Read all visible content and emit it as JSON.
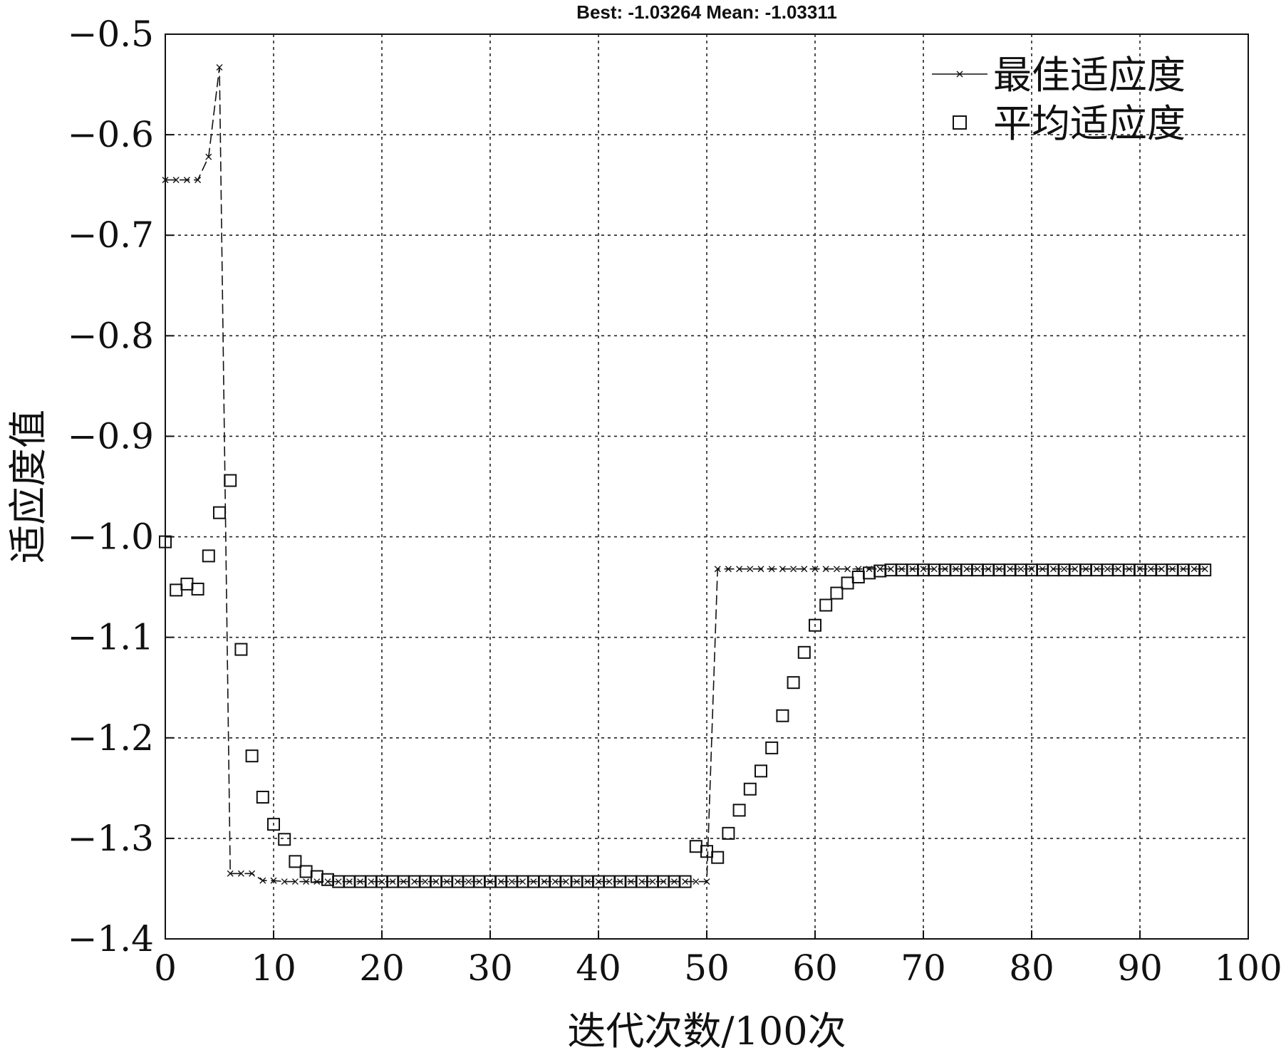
{
  "chart_data": {
    "type": "line",
    "title": "Best: -1.03264 Mean: -1.03311",
    "xlabel": "迭代次数/100次",
    "ylabel": "适应度值",
    "xlim": [
      0,
      100
    ],
    "ylim": [
      -1.4,
      -0.5
    ],
    "xticks": [
      "0",
      "10",
      "20",
      "30",
      "40",
      "50",
      "60",
      "70",
      "80",
      "90",
      "100"
    ],
    "yticks": [
      "−0.5",
      "−0.6",
      "−0.7",
      "−0.8",
      "−0.9",
      "−1.0",
      "−1.1",
      "−1.2",
      "−1.3",
      "−1.4"
    ],
    "grid": true,
    "legend_position": "top-right",
    "series": [
      {
        "name": "最佳适应度",
        "marker": "x",
        "line_style": "dashed",
        "x": [
          0,
          1,
          2,
          3,
          4,
          5,
          6,
          7,
          8,
          9,
          10,
          11,
          12,
          13,
          14,
          15,
          16,
          17,
          18,
          19,
          20,
          21,
          22,
          23,
          24,
          25,
          26,
          27,
          28,
          29,
          30,
          31,
          32,
          33,
          34,
          35,
          36,
          37,
          38,
          39,
          40,
          41,
          42,
          43,
          44,
          45,
          46,
          47,
          48,
          49,
          50,
          51,
          52,
          53,
          54,
          55,
          56,
          57,
          58,
          59,
          60,
          61,
          62,
          63,
          64,
          65,
          66,
          67,
          68,
          69,
          70,
          71,
          72,
          73,
          74,
          75,
          76,
          77,
          78,
          79,
          80,
          81,
          82,
          83,
          84,
          85,
          86,
          87,
          88,
          89,
          90,
          91,
          92,
          93,
          94,
          95,
          96
        ],
        "y": [
          -0.645,
          -0.645,
          -0.645,
          -0.645,
          -0.622,
          -0.533,
          -1.335,
          -1.335,
          -1.335,
          -1.342,
          -1.342,
          -1.343,
          -1.343,
          -1.343,
          -1.343,
          -1.343,
          -1.343,
          -1.343,
          -1.343,
          -1.343,
          -1.343,
          -1.343,
          -1.343,
          -1.343,
          -1.343,
          -1.343,
          -1.343,
          -1.343,
          -1.343,
          -1.343,
          -1.343,
          -1.343,
          -1.343,
          -1.343,
          -1.343,
          -1.343,
          -1.343,
          -1.343,
          -1.343,
          -1.343,
          -1.343,
          -1.343,
          -1.343,
          -1.343,
          -1.343,
          -1.343,
          -1.343,
          -1.343,
          -1.343,
          -1.343,
          -1.343,
          -1.032,
          -1.032,
          -1.032,
          -1.032,
          -1.032,
          -1.032,
          -1.032,
          -1.032,
          -1.032,
          -1.032,
          -1.032,
          -1.032,
          -1.032,
          -1.032,
          -1.032,
          -1.032,
          -1.032,
          -1.032,
          -1.032,
          -1.032,
          -1.032,
          -1.032,
          -1.032,
          -1.032,
          -1.032,
          -1.032,
          -1.032,
          -1.032,
          -1.032,
          -1.032,
          -1.032,
          -1.032,
          -1.032,
          -1.032,
          -1.032,
          -1.032,
          -1.032,
          -1.032,
          -1.032,
          -1.032,
          -1.032,
          -1.032,
          -1.032,
          -1.032,
          -1.032,
          -1.032
        ]
      },
      {
        "name": "平均适应度",
        "marker": "square",
        "line_style": "none",
        "x": [
          0,
          1,
          2,
          3,
          4,
          5,
          6,
          7,
          8,
          9,
          10,
          11,
          12,
          13,
          14,
          15,
          16,
          17,
          18,
          19,
          20,
          21,
          22,
          23,
          24,
          25,
          26,
          27,
          28,
          29,
          30,
          31,
          32,
          33,
          34,
          35,
          36,
          37,
          38,
          39,
          40,
          41,
          42,
          43,
          44,
          45,
          46,
          47,
          48,
          49,
          50,
          51,
          52,
          53,
          54,
          55,
          56,
          57,
          58,
          59,
          60,
          61,
          62,
          63,
          64,
          65,
          66,
          67,
          68,
          69,
          70,
          71,
          72,
          73,
          74,
          75,
          76,
          77,
          78,
          79,
          80,
          81,
          82,
          83,
          84,
          85,
          86,
          87,
          88,
          89,
          90,
          91,
          92,
          93,
          94,
          95,
          96
        ],
        "y": [
          -1.005,
          -1.053,
          -1.047,
          -1.052,
          -1.019,
          -0.976,
          -0.944,
          -1.112,
          -1.218,
          -1.259,
          -1.286,
          -1.301,
          -1.323,
          -1.333,
          -1.338,
          -1.341,
          -1.343,
          -1.343,
          -1.343,
          -1.343,
          -1.343,
          -1.343,
          -1.343,
          -1.343,
          -1.343,
          -1.343,
          -1.343,
          -1.343,
          -1.343,
          -1.343,
          -1.343,
          -1.343,
          -1.343,
          -1.343,
          -1.343,
          -1.343,
          -1.343,
          -1.343,
          -1.343,
          -1.343,
          -1.343,
          -1.343,
          -1.343,
          -1.343,
          -1.343,
          -1.343,
          -1.343,
          -1.343,
          -1.343,
          -1.308,
          -1.313,
          -1.319,
          -1.295,
          -1.272,
          -1.251,
          -1.233,
          -1.21,
          -1.178,
          -1.145,
          -1.115,
          -1.088,
          -1.068,
          -1.056,
          -1.046,
          -1.04,
          -1.036,
          -1.034,
          -1.033,
          -1.033,
          -1.033,
          -1.033,
          -1.033,
          -1.033,
          -1.033,
          -1.033,
          -1.033,
          -1.033,
          -1.033,
          -1.033,
          -1.033,
          -1.033,
          -1.033,
          -1.033,
          -1.033,
          -1.033,
          -1.033,
          -1.033,
          -1.033,
          -1.033,
          -1.033,
          -1.033,
          -1.033,
          -1.033,
          -1.033,
          -1.033,
          -1.033,
          -1.033
        ]
      }
    ]
  }
}
